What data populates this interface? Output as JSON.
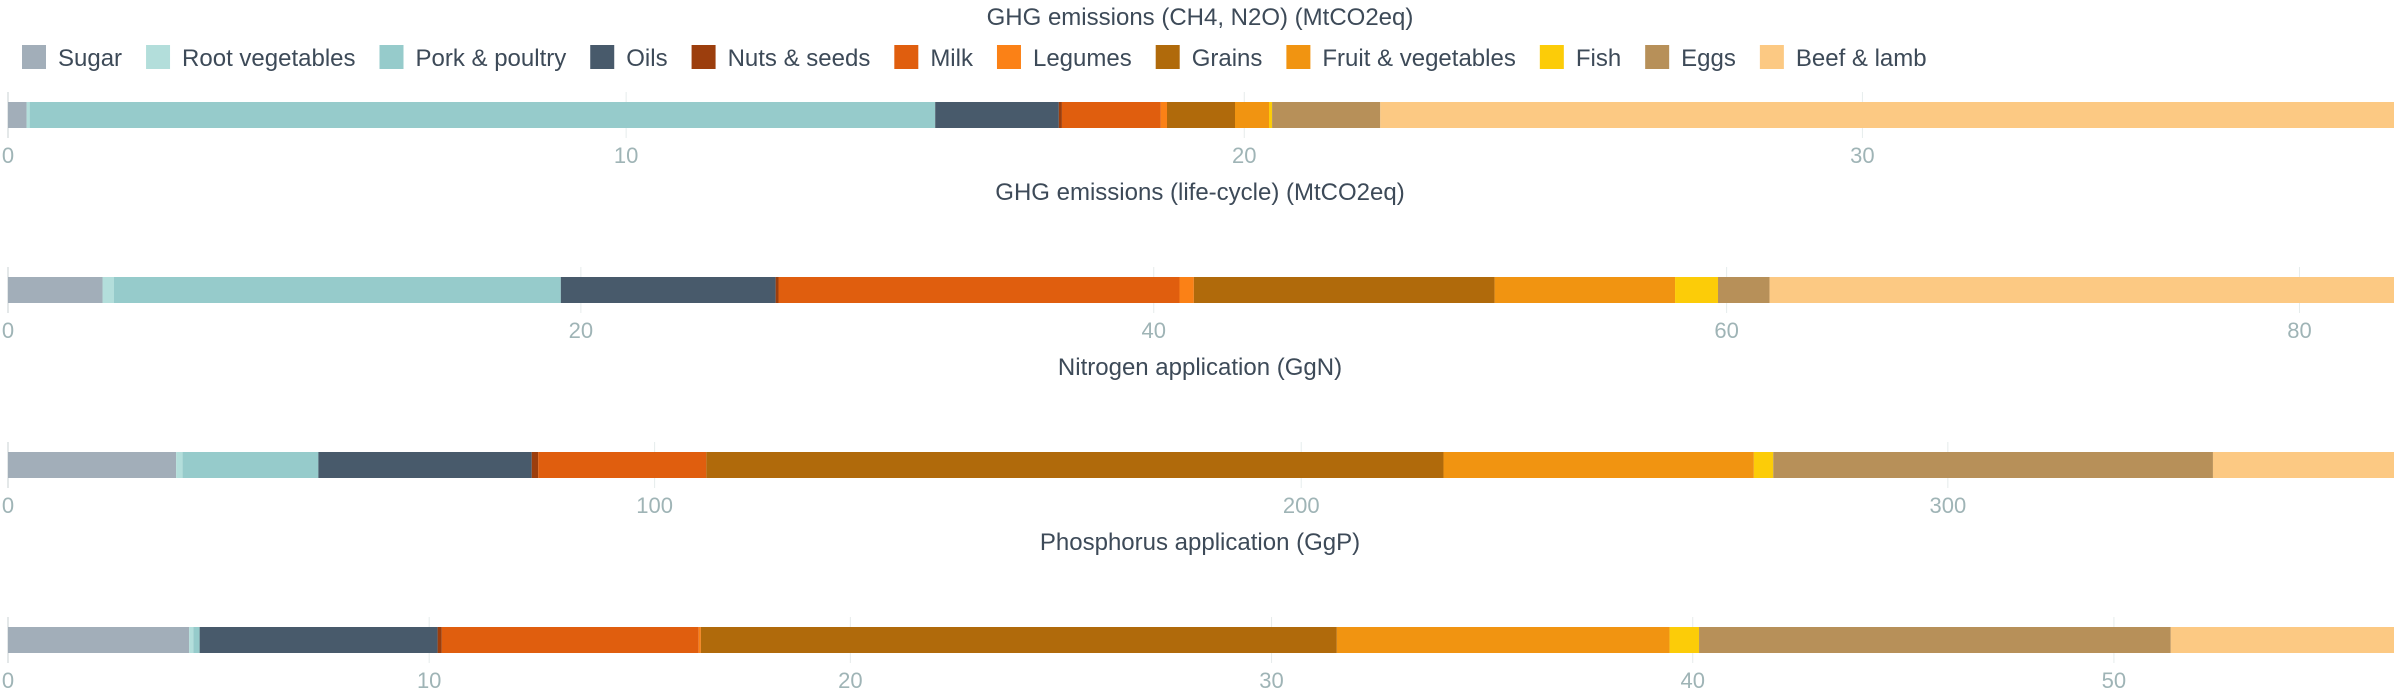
{
  "legend": [
    {
      "name": "Sugar",
      "color": "#a2aeb9"
    },
    {
      "name": "Root vegetables",
      "color": "#b3dedb"
    },
    {
      "name": "Pork & poultry",
      "color": "#96cbcb"
    },
    {
      "name": "Oils",
      "color": "#485a6b"
    },
    {
      "name": "Nuts & seeds",
      "color": "#9c3e0d"
    },
    {
      "name": "Milk",
      "color": "#e05e0e"
    },
    {
      "name": "Legumes",
      "color": "#fb8116"
    },
    {
      "name": "Grains",
      "color": "#b06a0b"
    },
    {
      "name": "Fruit & vegetables",
      "color": "#f19411"
    },
    {
      "name": "Fish",
      "color": "#fccc08"
    },
    {
      "name": "Eggs",
      "color": "#b79059"
    },
    {
      "name": "Beef & lamb",
      "color": "#fcc983"
    }
  ],
  "chart_data": [
    {
      "type": "bar",
      "orientation": "horizontal",
      "stacked": true,
      "title": "GHG emissions (CH4, N2O) (MtCO2eq)",
      "categories": [
        "Sugar",
        "Root vegetables",
        "Pork & poultry",
        "Oils",
        "Nuts & seeds",
        "Milk",
        "Legumes",
        "Grains",
        "Fruit & vegetables",
        "Fish",
        "Eggs",
        "Beef & lamb"
      ],
      "values": [
        0.3,
        0.05,
        14.65,
        2.0,
        0.05,
        1.6,
        0.1,
        1.1,
        0.55,
        0.05,
        1.75,
        16.4
      ],
      "xlim": [
        0,
        38.6
      ],
      "xticks": [
        0,
        10,
        20,
        30
      ]
    },
    {
      "type": "bar",
      "orientation": "horizontal",
      "stacked": true,
      "title": "GHG emissions (life-cycle) (MtCO2eq)",
      "categories": [
        "Sugar",
        "Root vegetables",
        "Pork & poultry",
        "Oils",
        "Nuts & seeds",
        "Milk",
        "Legumes",
        "Grains",
        "Fruit & vegetables",
        "Fish",
        "Eggs",
        "Beef & lamb"
      ],
      "values": [
        3.3,
        0.4,
        15.6,
        7.5,
        0.1,
        14.0,
        0.5,
        10.5,
        6.3,
        1.5,
        1.8,
        21.8
      ],
      "xlim": [
        0,
        83.3
      ],
      "xticks": [
        0,
        20,
        40,
        60,
        80
      ]
    },
    {
      "type": "bar",
      "orientation": "horizontal",
      "stacked": true,
      "title": "Nitrogen application (GgN)",
      "categories": [
        "Sugar",
        "Root vegetables",
        "Pork & poultry",
        "Oils",
        "Nuts & seeds",
        "Milk",
        "Legumes",
        "Grains",
        "Fruit & vegetables",
        "Fish",
        "Eggs",
        "Beef & lamb"
      ],
      "values": [
        26,
        1,
        21,
        33,
        1,
        26,
        0,
        114,
        48,
        3,
        68,
        28
      ],
      "xlim": [
        0,
        369
      ],
      "xticks": [
        0,
        100,
        200,
        300
      ]
    },
    {
      "type": "bar",
      "orientation": "horizontal",
      "stacked": true,
      "title": "Phosphorus application (GgP)",
      "categories": [
        "Sugar",
        "Root vegetables",
        "Pork & poultry",
        "Oils",
        "Nuts & seeds",
        "Milk",
        "Legumes",
        "Grains",
        "Fruit & vegetables",
        "Fish",
        "Eggs",
        "Beef & lamb"
      ],
      "values": [
        4.3,
        0.1,
        0.15,
        5.65,
        0.1,
        6.1,
        0.05,
        15.1,
        7.9,
        0.7,
        11.2,
        5.3
      ],
      "xlim": [
        0,
        56.65
      ],
      "xticks": [
        0,
        10,
        20,
        30,
        40,
        50
      ]
    }
  ]
}
